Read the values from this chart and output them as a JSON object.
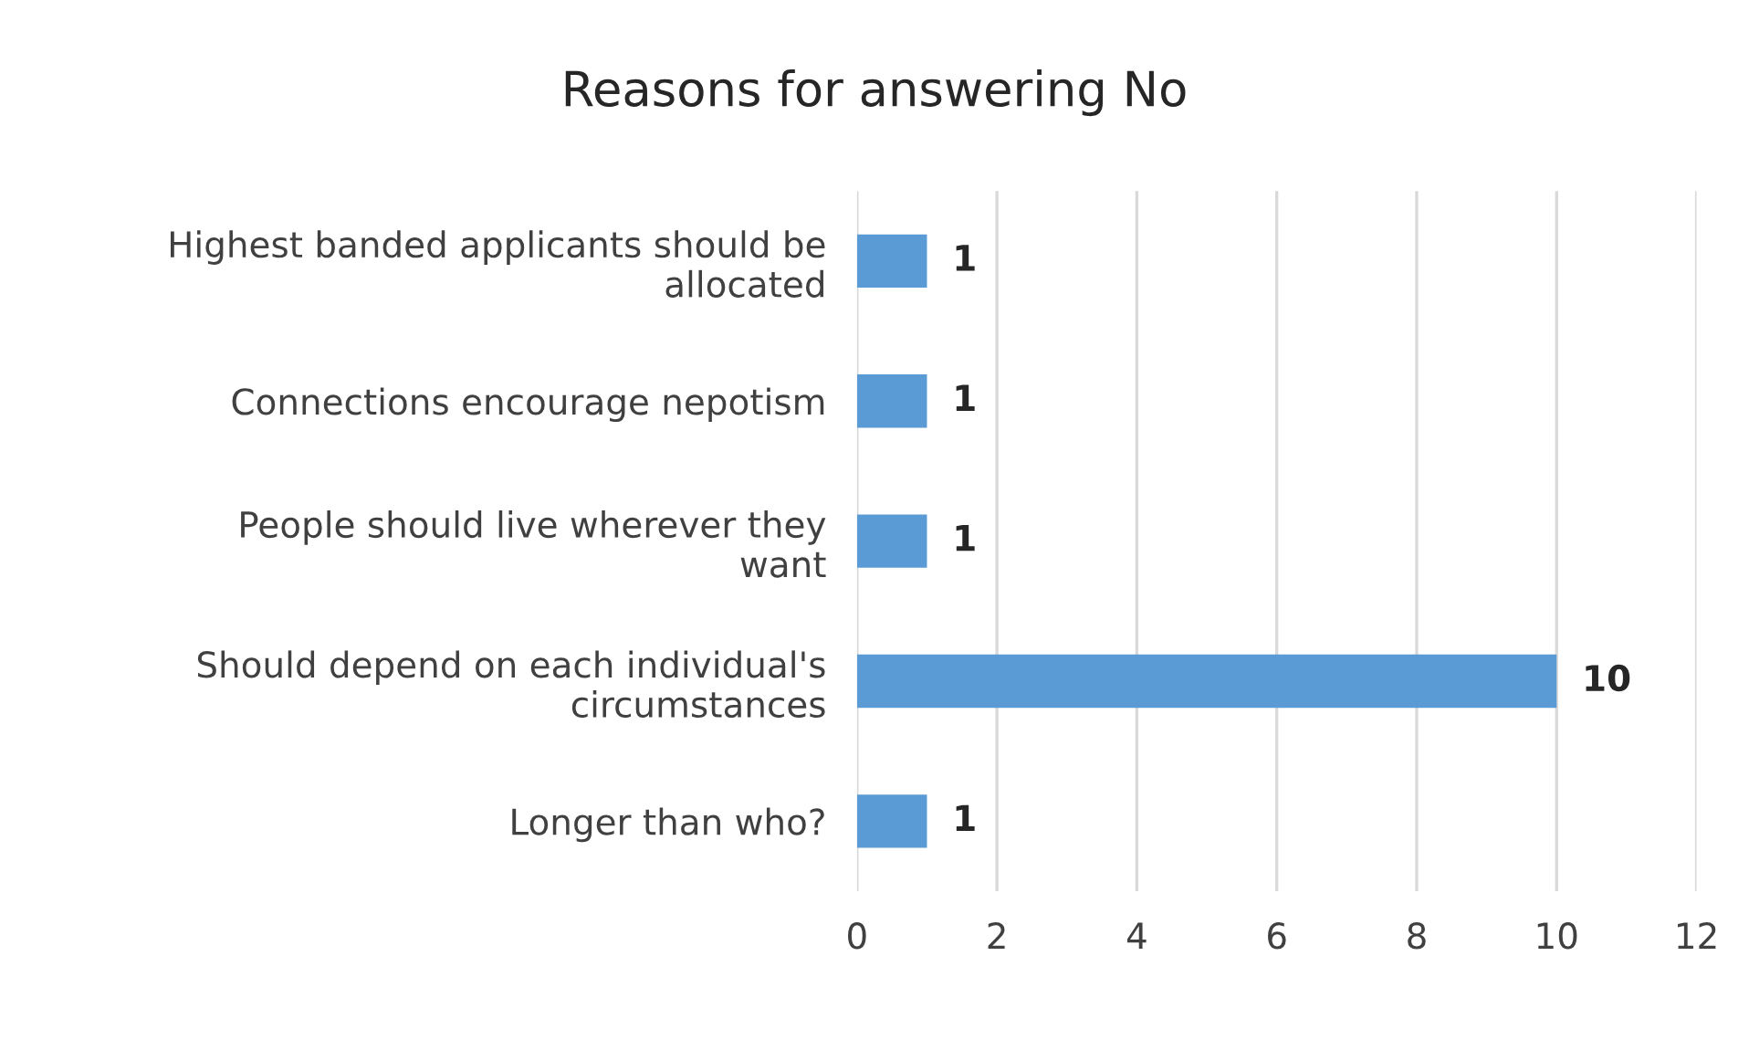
{
  "chart_data": {
    "type": "bar",
    "orientation": "horizontal",
    "title": "Reasons for answering No",
    "categories": [
      "Highest banded applicants should be allocated",
      "Connections encourage nepotism",
      "People should live wherever they want",
      "Should depend on each individual's circumstances",
      "Longer than who?"
    ],
    "values": [
      1,
      1,
      1,
      10,
      1
    ],
    "color": "#5b9bd5",
    "xlim": [
      0,
      12
    ],
    "xticks": [
      0,
      2,
      4,
      6,
      8,
      10,
      12
    ],
    "grid": "x",
    "data_labels": true,
    "legend": false
  }
}
